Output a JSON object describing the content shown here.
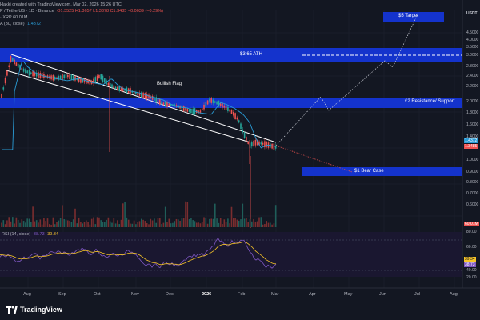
{
  "header": {
    "line1": "Hakki created with TradingView.com, Mar 02, 2026 15:26 UTC",
    "line2_symbol": "P / TetherUS · 1D · Binance",
    "line2_ohlc": "O1.3525  H1.3657  L1.3378  C1.3485  −0.0039 (−0.29%)",
    "line3": "· XRP  60.01M",
    "line4_label": "A (30, close)",
    "line4_value": "1.4372"
  },
  "zones": {
    "target": "$5 Target",
    "ath": "$3.65 ATH",
    "support": "£2 Resistance/ Support",
    "bear": "$1 Bear Case",
    "pattern": "Bullish Flag"
  },
  "price_axis": {
    "quote": "USDT",
    "labels": [
      "4.5000",
      "4.0000",
      "3.5000",
      "3.0000",
      "2.8000",
      "2.4000",
      "2.2000",
      "2.0000",
      "1.8000",
      "1.6000",
      "1.4000",
      "1.2000",
      "1.0000",
      "0.9000",
      "0.8000",
      "0.7000",
      "0.6000"
    ],
    "current_price": "1.3485",
    "ma_value": "1.4372",
    "vol_value": "60.01M"
  },
  "rsi": {
    "label": "RSI (14, close)",
    "value_a": "38.73",
    "value_b": "39.34",
    "levels": [
      "80.00",
      "60.00",
      "40.00",
      "20.00"
    ]
  },
  "time_axis": [
    "Aug",
    "Sep",
    "Oct",
    "Nov",
    "Dec",
    "2026",
    "Feb",
    "Mar",
    "Apr",
    "May",
    "Jun",
    "Jul",
    "Aug"
  ],
  "brand": "TradingView",
  "colors": {
    "zone_blue": "#1433cc",
    "up": "#26a69a",
    "down": "#ef5350",
    "ma": "#2a9cd6",
    "rsi": "#7e57c2",
    "rsi_ma": "#f7c528",
    "background": "#131722"
  }
}
